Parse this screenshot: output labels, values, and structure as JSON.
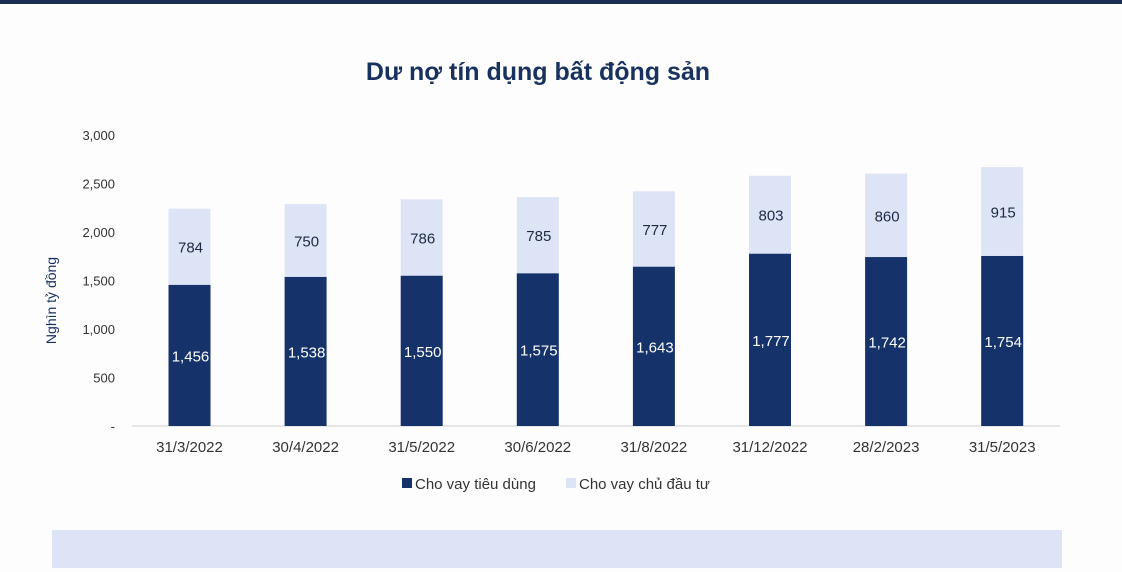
{
  "chart_data": {
    "type": "bar",
    "stacked": true,
    "title": "Dư nợ tín dụng bất động sản",
    "xlabel": "",
    "ylabel": "Nghìn tỷ đồng",
    "ylim": [
      0,
      3000
    ],
    "yticks": [
      {
        "value": 0,
        "label": "-"
      },
      {
        "value": 500,
        "label": "500"
      },
      {
        "value": 1000,
        "label": "1,000"
      },
      {
        "value": 1500,
        "label": "1,500"
      },
      {
        "value": 2000,
        "label": "2,000"
      },
      {
        "value": 2500,
        "label": "2,500"
      },
      {
        "value": 3000,
        "label": "3,000"
      }
    ],
    "categories": [
      "31/3/2022",
      "30/4/2022",
      "31/5/2022",
      "30/6/2022",
      "31/8/2022",
      "31/12/2022",
      "28/2/2023",
      "31/5/2023"
    ],
    "series": [
      {
        "name": "Cho vay tiêu dùng",
        "color": "#15336a",
        "label_color": "#ffffff",
        "values": [
          1456,
          1538,
          1550,
          1575,
          1643,
          1777,
          1742,
          1754
        ],
        "labels": [
          "1,456",
          "1,538",
          "1,550",
          "1,575",
          "1,643",
          "1,777",
          "1,742",
          "1,754"
        ]
      },
      {
        "name": "Cho vay chủ đầu tư",
        "color": "#dde4f6",
        "label_color": "#1d2a44",
        "values": [
          784,
          750,
          786,
          785,
          777,
          803,
          860,
          915
        ],
        "labels": [
          "784",
          "750",
          "786",
          "785",
          "777",
          "803",
          "860",
          "915"
        ]
      }
    ],
    "legend_position": "bottom",
    "grid": false
  }
}
